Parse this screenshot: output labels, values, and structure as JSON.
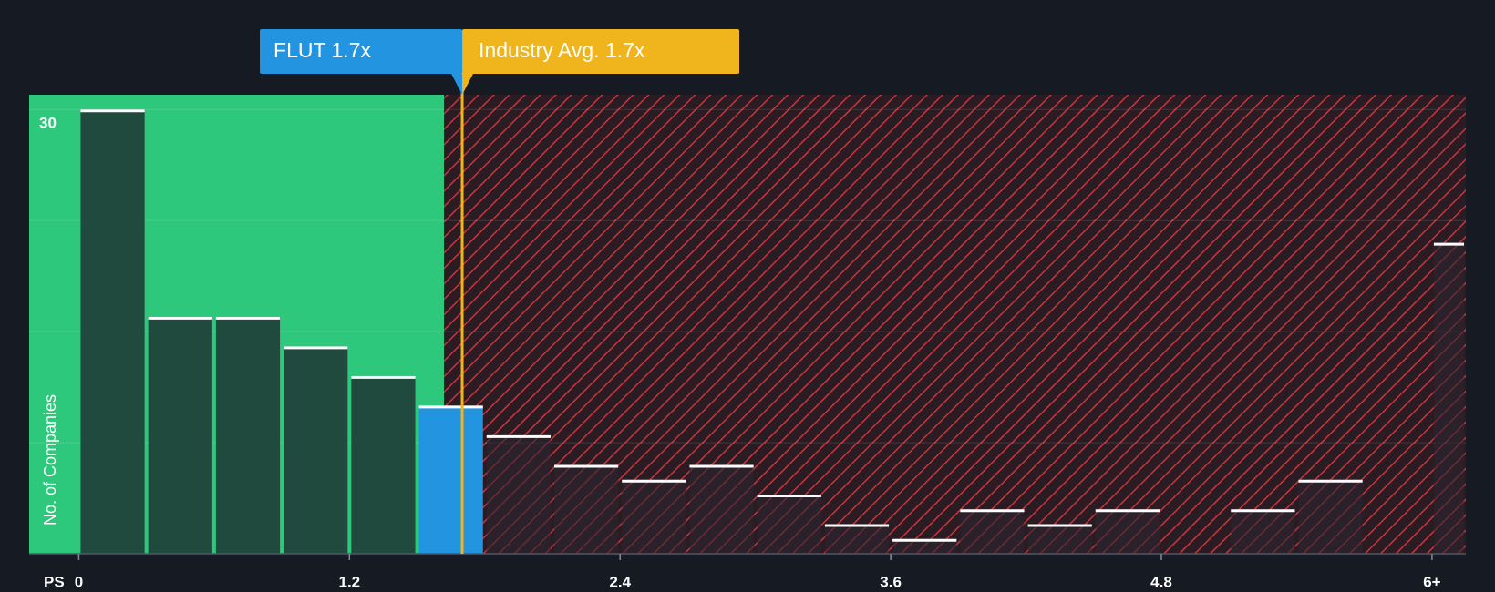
{
  "chart_data": {
    "type": "histogram",
    "bins": [
      0,
      0.3,
      0.6,
      0.9,
      1.2,
      1.5,
      1.8,
      2.1,
      2.4,
      2.7,
      3.0,
      3.3,
      3.6,
      3.9,
      4.2,
      4.5,
      4.8,
      5.1,
      5.4,
      5.7,
      6.0,
      6.15
    ],
    "values": [
      30,
      16,
      16,
      14,
      12,
      10,
      8,
      6,
      5,
      6,
      4,
      2,
      1,
      3,
      2,
      3,
      0,
      3,
      5,
      0,
      21
    ],
    "highlight": 5,
    "color": "#1f4a3d",
    "hatch_bar_color": "#2b2430",
    "highlight_color": "#2394e0",
    "xlim": [
      -0.22,
      6.15
    ],
    "xticks": [
      0,
      1.2,
      2.4,
      3.6,
      4.8,
      {
        "value": 6,
        "label": "6+"
      }
    ],
    "ylim": [
      0,
      31
    ],
    "yticks": [
      30
    ],
    "ygrid": [
      7.5,
      15,
      22.5
    ],
    "xlabel": "PS",
    "ylabel": "No. of Companies",
    "markers": [
      {
        "label": "FLUT 1.7x",
        "value": 1.7,
        "color": "#2394e0"
      },
      {
        "label": "Industry Avg. 1.7x",
        "value": 1.7,
        "color": "#f0b41c"
      }
    ]
  }
}
